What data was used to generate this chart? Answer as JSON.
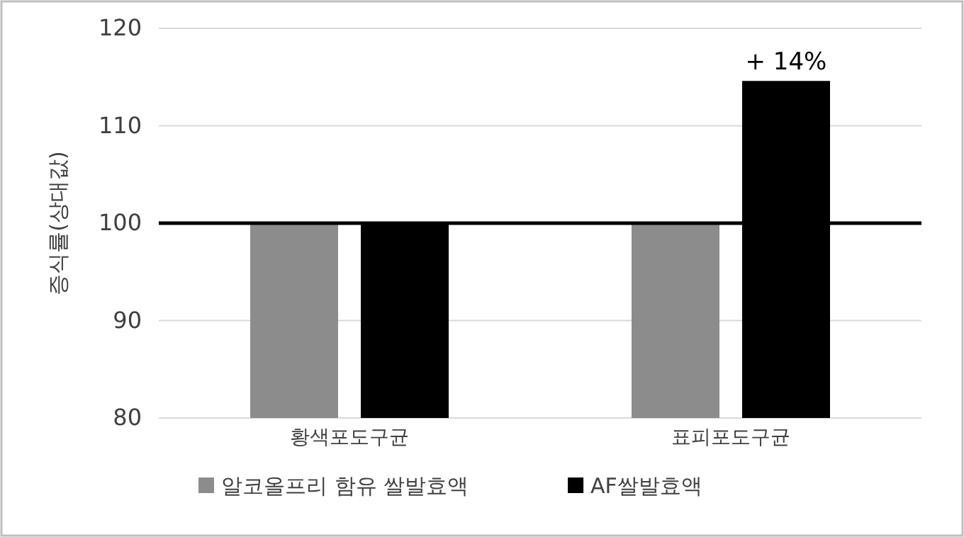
{
  "chart_data": {
    "type": "bar",
    "ylabel": "증식률(상대값)",
    "categories": [
      "황색포도구균",
      "표피포도구균"
    ],
    "series": [
      {
        "name": "알코올프리 함유 쌀발효액",
        "color": "#8c8c8c",
        "values": [
          100,
          100
        ]
      },
      {
        "name": "AF쌀발효액",
        "color": "#000000",
        "values": [
          100,
          114.6
        ]
      }
    ],
    "ylim": [
      80,
      120
    ],
    "yticks": [
      80,
      90,
      100,
      110,
      120
    ],
    "grid": "y",
    "legend": "bottom",
    "ref_lines": [
      {
        "axis": "y",
        "value": 100,
        "color": "#000000"
      }
    ],
    "annotations": [
      "+ 14%"
    ]
  }
}
